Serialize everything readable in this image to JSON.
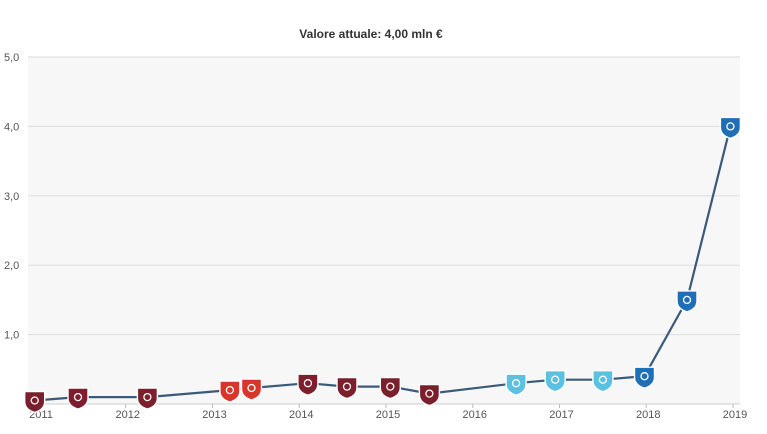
{
  "chart_data": {
    "type": "line",
    "title": "Valore attuale: 4,00 mln €",
    "xlabel": "",
    "ylabel": "",
    "ylim": [
      0,
      5
    ],
    "xlim": [
      2011,
      2019
    ],
    "y_ticks": [
      {
        "value": 5,
        "label": "5,0"
      },
      {
        "value": 4,
        "label": "4,0"
      },
      {
        "value": 3,
        "label": "3,0"
      },
      {
        "value": 2,
        "label": "2,0"
      },
      {
        "value": 1,
        "label": "1,0"
      }
    ],
    "x_ticks": [
      {
        "value": 2011,
        "label": "2011"
      },
      {
        "value": 2012,
        "label": "2012"
      },
      {
        "value": 2013,
        "label": "2013"
      },
      {
        "value": 2014,
        "label": "2014"
      },
      {
        "value": 2015,
        "label": "2015"
      },
      {
        "value": 2016,
        "label": "2016"
      },
      {
        "value": 2017,
        "label": "2017"
      },
      {
        "value": 2018,
        "label": "2018"
      },
      {
        "value": 2019,
        "label": "2019"
      }
    ],
    "grid": true,
    "line_color": "#3b5a78",
    "series": [
      {
        "points": [
          {
            "x": 2010.95,
            "y": 0.05,
            "crest": "club-crest-maroon"
          },
          {
            "x": 2011.45,
            "y": 0.1,
            "crest": "club-crest-maroon"
          },
          {
            "x": 2012.25,
            "y": 0.1,
            "crest": "club-crest-maroon"
          },
          {
            "x": 2013.2,
            "y": 0.2,
            "crest": "club-crest-red-gold"
          },
          {
            "x": 2013.45,
            "y": 0.23,
            "crest": "club-crest-red-gold"
          },
          {
            "x": 2014.1,
            "y": 0.3,
            "crest": "club-crest-maroon"
          },
          {
            "x": 2014.55,
            "y": 0.25,
            "crest": "club-crest-maroon"
          },
          {
            "x": 2015.05,
            "y": 0.25,
            "crest": "club-crest-maroon"
          },
          {
            "x": 2015.5,
            "y": 0.15,
            "crest": "club-crest-maroon"
          },
          {
            "x": 2016.5,
            "y": 0.3,
            "crest": "club-crest-light-blue"
          },
          {
            "x": 2016.95,
            "y": 0.35,
            "crest": "club-crest-light-blue"
          },
          {
            "x": 2017.5,
            "y": 0.35,
            "crest": "club-crest-light-blue"
          },
          {
            "x": 2017.98,
            "y": 0.4,
            "crest": "club-crest-blue"
          },
          {
            "x": 2018.47,
            "y": 1.5,
            "crest": "club-crest-blue"
          },
          {
            "x": 2018.97,
            "y": 4.0,
            "crest": "club-crest-blue"
          }
        ]
      }
    ],
    "crest_colors": {
      "club-crest-maroon": "#7a1f2b",
      "club-crest-red-gold": "#d8362b",
      "club-crest-light-blue": "#5cc0e0",
      "club-crest-blue": "#1f6fb8"
    }
  }
}
